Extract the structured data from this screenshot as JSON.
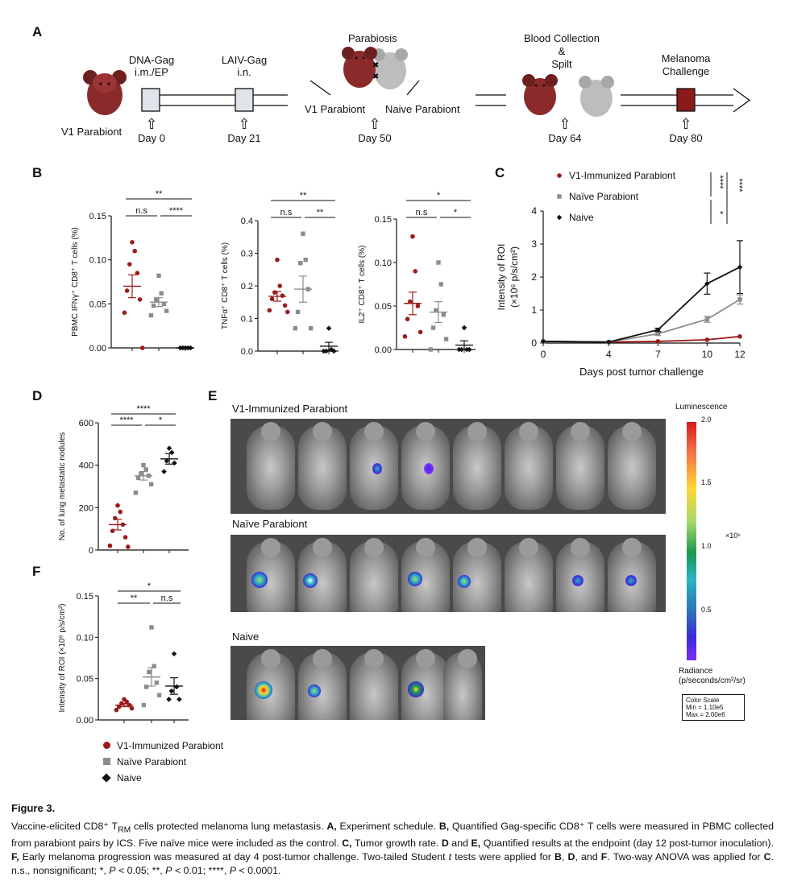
{
  "panels": {
    "A": "A",
    "B": "B",
    "C": "C",
    "D": "D",
    "E": "E",
    "F": "F"
  },
  "schedule": {
    "v1_parabiont": "V1 Parabiont",
    "dna_gag": [
      "DNA-Gag",
      "i.m./EP"
    ],
    "laiv_gag": [
      "LAIV-Gag",
      "i.n."
    ],
    "parabiosis": "Parabiosis",
    "v1_parabiont2": "V1 Parabiont",
    "naive_parabiont": "Naive Parabiont",
    "blood": [
      "Blood Collection",
      "&",
      "Spilt"
    ],
    "melanoma": [
      "Melanoma",
      "Challenge"
    ],
    "days": [
      "Day 0",
      "Day 21",
      "Day 50",
      "Day 64",
      "Day 80"
    ],
    "arrow_glyph": "⇧"
  },
  "colors": {
    "v1": "#9b1b1b",
    "naive_parabiont": "#8c8c8c",
    "naive": "#111111"
  },
  "chart_data": [
    {
      "id": "B1",
      "type": "scatter",
      "ylabel": "PBMC IFNγ⁺ CD8⁺ T cells (%)",
      "ylim": [
        0,
        0.15
      ],
      "yticks": [
        "0.00",
        "0.05",
        "0.10",
        "0.15"
      ],
      "groups": [
        {
          "name": "V1-Immunized Parabiont",
          "mean": 0.07,
          "sem": 0.013,
          "values": [
            0.12,
            0.11,
            0.095,
            0.085,
            0.065,
            0.055,
            0.04,
            0.0
          ]
        },
        {
          "name": "Naïve Parabiont",
          "mean": 0.052,
          "sem": 0.005,
          "values": [
            0.082,
            0.062,
            0.055,
            0.05,
            0.048,
            0.042,
            0.037
          ]
        },
        {
          "name": "Naive",
          "mean": 0.0,
          "sem": 0.0,
          "values": [
            0,
            0,
            0,
            0,
            0
          ]
        }
      ],
      "sig": [
        "**",
        "n.s",
        "****"
      ]
    },
    {
      "id": "B2",
      "type": "scatter",
      "ylabel": "TNFα⁺ CD8⁺ T cells (%)",
      "ylim": [
        0,
        0.4
      ],
      "yticks": [
        "0.0",
        "0.1",
        "0.2",
        "0.3",
        "0.4"
      ],
      "groups": [
        {
          "name": "V1-Immunized Parabiont",
          "mean": 0.168,
          "sem": 0.015,
          "values": [
            0.28,
            0.2,
            0.18,
            0.17,
            0.16,
            0.14,
            0.125,
            0.12
          ]
        },
        {
          "name": "Naïve Parabiont",
          "mean": 0.19,
          "sem": 0.04,
          "values": [
            0.36,
            0.28,
            0.27,
            0.19,
            0.12,
            0.07,
            0.07
          ]
        },
        {
          "name": "Naive",
          "mean": 0.015,
          "sem": 0.012,
          "values": [
            0.07,
            0.005,
            0.0,
            0.0,
            0.0
          ]
        }
      ],
      "sig": [
        "**",
        "n.s",
        "**"
      ]
    },
    {
      "id": "B3",
      "type": "scatter",
      "ylabel": "IL2⁺ CD8⁺ T cells (%)",
      "ylim": [
        0,
        0.15
      ],
      "yticks": [
        "0.00",
        "0.05",
        "0.10",
        "0.15"
      ],
      "groups": [
        {
          "name": "V1-Immunized Parabiont",
          "mean": 0.053,
          "sem": 0.013,
          "values": [
            0.13,
            0.09,
            0.055,
            0.05,
            0.035,
            0.02,
            0.015
          ]
        },
        {
          "name": "Naïve Parabiont",
          "mean": 0.043,
          "sem": 0.012,
          "values": [
            0.1,
            0.075,
            0.045,
            0.04,
            0.025,
            0.012,
            0.0
          ]
        },
        {
          "name": "Naive",
          "mean": 0.005,
          "sem": 0.005,
          "values": [
            0.025,
            0.0,
            0.0,
            0.0,
            0.0
          ]
        }
      ],
      "sig": [
        "*",
        "n.s",
        "*"
      ]
    },
    {
      "id": "C",
      "type": "line",
      "xlabel": "Days post tumor challenge",
      "ylabel": [
        "Intensity of ROI",
        "(×10⁶ p/s/cm²)"
      ],
      "x": [
        0,
        4,
        7,
        10,
        12
      ],
      "ylim": [
        0,
        4
      ],
      "series": [
        {
          "name": "V1-Immunized Parabiont",
          "values": [
            0.05,
            0.03,
            0.05,
            0.1,
            0.2
          ],
          "sem": [
            0,
            0,
            0,
            0,
            0
          ]
        },
        {
          "name": "Naïve Parabiont",
          "values": [
            0.05,
            0.03,
            0.28,
            0.72,
            1.32
          ],
          "sem": [
            0,
            0,
            0.05,
            0.09,
            0.14
          ]
        },
        {
          "name": "Naive",
          "values": [
            0.05,
            0.03,
            0.4,
            1.8,
            2.3
          ],
          "sem": [
            0,
            0,
            0.05,
            0.32,
            0.8
          ]
        }
      ],
      "sig": [
        "****",
        "****",
        "*"
      ]
    },
    {
      "id": "D",
      "type": "scatter",
      "ylabel": "No. of lung metastatic nodules",
      "ylim": [
        0,
        600
      ],
      "yticks": [
        "0",
        "200",
        "400",
        "600"
      ],
      "groups": [
        {
          "name": "V1-Immunized Parabiont",
          "mean": 120,
          "sem": 25,
          "values": [
            210,
            180,
            150,
            120,
            90,
            60,
            20,
            15
          ]
        },
        {
          "name": "Naïve Parabiont",
          "mean": 350,
          "sem": 20,
          "values": [
            400,
            380,
            360,
            350,
            340,
            310,
            270
          ]
        },
        {
          "name": "Naive",
          "mean": 430,
          "sem": 25,
          "values": [
            480,
            460,
            420,
            410,
            370
          ]
        }
      ],
      "sig": [
        "****",
        "****",
        "*"
      ]
    },
    {
      "id": "F",
      "type": "scatter",
      "ylabel": "Intensity of ROI (×10⁶ p/s/cm²)",
      "ylim": [
        0,
        0.15
      ],
      "yticks": [
        "0.00",
        "0.05",
        "0.10",
        "0.15"
      ],
      "groups": [
        {
          "name": "V1-Immunized Parabiont",
          "mean": 0.018,
          "sem": 0.002,
          "values": [
            0.025,
            0.022,
            0.02,
            0.018,
            0.016,
            0.014,
            0.012
          ]
        },
        {
          "name": "Naïve Parabiont",
          "mean": 0.052,
          "sem": 0.011,
          "values": [
            0.112,
            0.065,
            0.058,
            0.045,
            0.04,
            0.03,
            0.018
          ]
        },
        {
          "name": "Naive",
          "mean": 0.041,
          "sem": 0.01,
          "values": [
            0.08,
            0.04,
            0.035,
            0.025,
            0.025
          ]
        }
      ],
      "sig": [
        "*",
        "**",
        "n.s"
      ]
    }
  ],
  "legend": [
    "V1-Immunized Parabiont",
    "Naïve Parabiont",
    "Naive"
  ],
  "panelE": {
    "titles": [
      "V1-Immunized Parabiont",
      "Naïve Parabiont",
      "Naive"
    ],
    "colorbar": {
      "title": "Luminescence",
      "ticks": [
        "2.0",
        "1.5",
        "1.0",
        "0.5"
      ],
      "exp": "×10⁶",
      "unit": [
        "Radiance",
        "(p/seconds/cm²/sr)"
      ],
      "scale": [
        "Color Scale",
        "Min = 1.10e5",
        "Max = 2.00e6"
      ]
    }
  },
  "caption": {
    "title": "Figure 3.",
    "text": "Vaccine-elicited CD8⁺ T<sub>RM</sub> cells protected melanoma lung metastasis. <b>A,</b> Experiment schedule. <b>B,</b> Quantified Gag-specific CD8⁺ T cells were measured in PBMC collected from parabiont pairs by ICS. Five naïve mice were included as the control. <b>C,</b> Tumor growth rate. <b>D</b> and <b>E,</b> Quantified results at the endpoint (day 12 post-tumor inoculation). <b>F,</b> Early melanoma progression was measured at day 4 post-tumor challenge. Two-tailed Student <i>t</i> tests were applied for <b>B</b>, <b>D</b>, and <b>F</b>. Two-way ANOVA was applied for <b>C</b>. n.s., nonsignificant; *, <i>P</i> &lt; 0.05; **, <i>P</i> &lt; 0.01; ****, <i>P</i> &lt; 0.0001."
  }
}
